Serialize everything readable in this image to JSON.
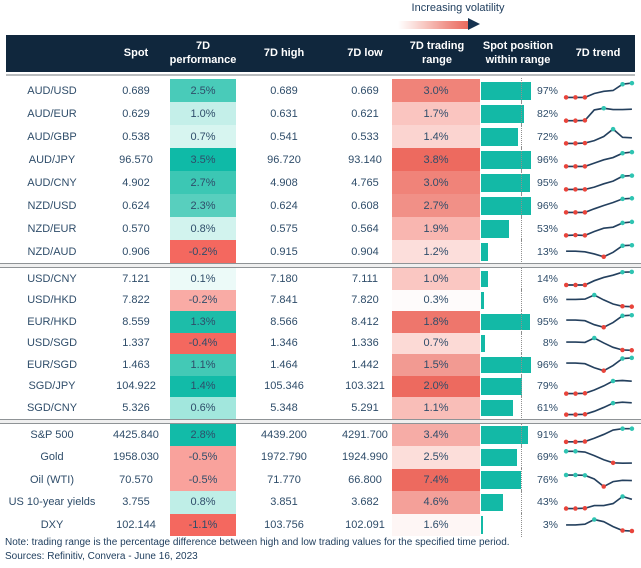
{
  "volatility_label": "Increasing volatility",
  "header": {
    "cols": [
      "Spot",
      "7D performance",
      "7D high",
      "7D low",
      "7D trading range",
      "Spot position within range",
      "7D trend"
    ]
  },
  "colors": {
    "header_bg": "#10273d",
    "bar_teal": "#13b9a6",
    "spark_line": "#24405e",
    "dot_red": "#e8443b",
    "dot_teal": "#2fc4b2",
    "text": "#2f4d6a"
  },
  "groups": [
    {
      "rows": [
        {
          "label": "AUD/USD",
          "spot": "0.689",
          "perf": "2.5%",
          "perf_color": "#49cbb9",
          "high": "0.689",
          "low": "0.669",
          "range": "3.0%",
          "range_color": "#f08379",
          "pos_pct": 97,
          "pos_label": "97%",
          "trend": {
            "v": [
              0.08,
              0.08,
              0.08,
              0.32,
              0.45,
              0.5,
              0.88,
              0.95
            ],
            "d": [
              "r",
              "r",
              "r",
              null,
              null,
              null,
              "t",
              "t"
            ]
          }
        },
        {
          "label": "AUD/EUR",
          "spot": "0.629",
          "perf": "1.0%",
          "perf_color": "#c4efe9",
          "high": "0.631",
          "low": "0.621",
          "range": "1.7%",
          "range_color": "#fac5c0",
          "pos_pct": 82,
          "pos_label": "82%",
          "trend": {
            "v": [
              0.06,
              0.06,
              0.08,
              0.72,
              0.82,
              0.74,
              0.74,
              0.76
            ],
            "d": [
              "r",
              "r",
              "r",
              null,
              "t",
              null,
              null,
              null
            ]
          }
        },
        {
          "label": "AUD/GBP",
          "spot": "0.538",
          "perf": "0.7%",
          "perf_color": "#d7f5f0",
          "high": "0.541",
          "low": "0.533",
          "range": "1.4%",
          "range_color": "#fbd4d0",
          "pos_pct": 72,
          "pos_label": "72%",
          "trend": {
            "v": [
              0.08,
              0.08,
              0.1,
              0.25,
              0.5,
              0.95,
              0.45,
              0.42
            ],
            "d": [
              "r",
              "r",
              "r",
              null,
              null,
              "t",
              null,
              null
            ]
          }
        },
        {
          "label": "AUD/JPY",
          "spot": "96.570",
          "perf": "3.5%",
          "perf_color": "#0fbaa7",
          "high": "96.720",
          "low": "93.140",
          "range": "3.8%",
          "range_color": "#ed6a5f",
          "pos_pct": 96,
          "pos_label": "96%",
          "trend": {
            "v": [
              0.08,
              0.08,
              0.08,
              0.28,
              0.48,
              0.62,
              0.88,
              0.95
            ],
            "d": [
              "r",
              "r",
              "r",
              null,
              null,
              null,
              "t",
              "t"
            ]
          }
        },
        {
          "label": "AUD/CNY",
          "spot": "4.902",
          "perf": "2.7%",
          "perf_color": "#3cc7b4",
          "high": "4.908",
          "low": "4.765",
          "range": "3.0%",
          "range_color": "#f08379",
          "pos_pct": 95,
          "pos_label": "95%",
          "trend": {
            "v": [
              0.08,
              0.08,
              0.08,
              0.22,
              0.42,
              0.58,
              0.88,
              0.92
            ],
            "d": [
              "r",
              "r",
              "r",
              null,
              null,
              null,
              "t",
              "t"
            ]
          }
        },
        {
          "label": "NZD/USD",
          "spot": "0.624",
          "perf": "2.3%",
          "perf_color": "#58cfbe",
          "high": "0.624",
          "low": "0.608",
          "range": "2.7%",
          "range_color": "#f19087",
          "pos_pct": 96,
          "pos_label": "96%",
          "trend": {
            "v": [
              0.08,
              0.08,
              0.08,
              0.3,
              0.5,
              0.68,
              0.9,
              0.94
            ],
            "d": [
              "r",
              "r",
              "r",
              null,
              null,
              null,
              "t",
              "t"
            ]
          }
        },
        {
          "label": "NZD/EUR",
          "spot": "0.570",
          "perf": "0.8%",
          "perf_color": "#d2f3ee",
          "high": "0.575",
          "low": "0.564",
          "range": "1.9%",
          "range_color": "#f9b6b0",
          "pos_pct": 53,
          "pos_label": "53%",
          "trend": {
            "v": [
              0.08,
              0.1,
              0.08,
              0.32,
              0.52,
              0.58,
              0.84,
              0.9
            ],
            "d": [
              "r",
              "r",
              "r",
              null,
              null,
              null,
              "t",
              "t"
            ]
          }
        },
        {
          "label": "NZD/AUD",
          "spot": "0.906",
          "perf": "-0.2%",
          "perf_color": "#f4685f",
          "high": "0.915",
          "low": "0.904",
          "range": "1.2%",
          "range_color": "#fcdedb",
          "pos_pct": 13,
          "pos_label": "13%",
          "trend": {
            "v": [
              0.52,
              0.52,
              0.48,
              0.35,
              0.18,
              0.45,
              0.85,
              0.88
            ],
            "d": [
              null,
              null,
              null,
              null,
              "r",
              null,
              "t",
              "t"
            ]
          }
        }
      ]
    },
    {
      "rows": [
        {
          "label": "USD/CNY",
          "spot": "7.121",
          "perf": "0.1%",
          "perf_color": "#ecfaf8",
          "high": "7.180",
          "low": "7.111",
          "range": "1.0%",
          "range_color": "#fac7c2",
          "pos_pct": 14,
          "pos_label": "14%",
          "trend": {
            "v": [
              0.12,
              0.12,
              0.12,
              0.38,
              0.58,
              0.72,
              0.9,
              0.92
            ],
            "d": [
              "r",
              "r",
              "r",
              null,
              null,
              null,
              "t",
              "t"
            ]
          }
        },
        {
          "label": "USD/HKD",
          "spot": "7.822",
          "perf": "-0.2%",
          "perf_color": "#f9aba5",
          "high": "7.841",
          "low": "7.820",
          "range": "0.3%",
          "range_color": "#fefbfb",
          "pos_pct": 6,
          "pos_label": "6%",
          "trend": {
            "v": [
              0.58,
              0.58,
              0.6,
              0.85,
              0.55,
              0.3,
              0.16,
              0.14
            ],
            "d": [
              null,
              null,
              null,
              "t",
              null,
              null,
              "r",
              "r"
            ]
          }
        },
        {
          "label": "EUR/HKD",
          "spot": "8.559",
          "perf": "1.3%",
          "perf_color": "#1dbda9",
          "high": "8.566",
          "low": "8.412",
          "range": "1.8%",
          "range_color": "#ee766c",
          "pos_pct": 95,
          "pos_label": "95%",
          "trend": {
            "v": [
              0.6,
              0.6,
              0.56,
              0.32,
              0.16,
              0.45,
              0.86,
              0.9
            ],
            "d": [
              null,
              null,
              null,
              null,
              "r",
              null,
              "t",
              "t"
            ]
          }
        },
        {
          "label": "USD/SGD",
          "spot": "1.337",
          "perf": "-0.4%",
          "perf_color": "#f4685f",
          "high": "1.346",
          "low": "1.336",
          "range": "0.7%",
          "range_color": "#fcdad6",
          "pos_pct": 8,
          "pos_label": "8%",
          "trend": {
            "v": [
              0.6,
              0.6,
              0.58,
              0.85,
              0.55,
              0.28,
              0.12,
              0.1
            ],
            "d": [
              null,
              null,
              null,
              "t",
              null,
              null,
              "r",
              "r"
            ]
          }
        },
        {
          "label": "EUR/SGD",
          "spot": "1.463",
          "perf": "1.1%",
          "perf_color": "#43c9b6",
          "high": "1.464",
          "low": "1.442",
          "range": "1.5%",
          "range_color": "#f29a92",
          "pos_pct": 96,
          "pos_label": "96%",
          "trend": {
            "v": [
              0.6,
              0.6,
              0.56,
              0.32,
              0.14,
              0.45,
              0.88,
              0.92
            ],
            "d": [
              null,
              null,
              null,
              null,
              "r",
              null,
              "t",
              "t"
            ]
          }
        },
        {
          "label": "SGD/JPY",
          "spot": "104.922",
          "perf": "1.4%",
          "perf_color": "#12bba8",
          "high": "105.346",
          "low": "103.321",
          "range": "2.0%",
          "range_color": "#ed6a5f",
          "pos_pct": 79,
          "pos_label": "79%",
          "trend": {
            "v": [
              0.08,
              0.08,
              0.1,
              0.3,
              0.55,
              0.85,
              0.88,
              0.84
            ],
            "d": [
              "r",
              "r",
              "r",
              null,
              null,
              "t",
              null,
              null
            ]
          }
        },
        {
          "label": "SGD/CNY",
          "spot": "5.326",
          "perf": "0.6%",
          "perf_color": "#a2e7dd",
          "high": "5.348",
          "low": "5.291",
          "range": "1.1%",
          "range_color": "#f9beb8",
          "pos_pct": 61,
          "pos_label": "61%",
          "trend": {
            "v": [
              0.08,
              0.08,
              0.1,
              0.28,
              0.52,
              0.78,
              0.84,
              0.8
            ],
            "d": [
              "r",
              "r",
              "r",
              null,
              null,
              "t",
              null,
              null
            ]
          }
        }
      ]
    },
    {
      "rows": [
        {
          "label": "S&P 500",
          "spot": "4425.840",
          "perf": "2.8%",
          "perf_color": "#12bba8",
          "high": "4439.200",
          "low": "4291.700",
          "range": "3.4%",
          "range_color": "#f6aca6",
          "pos_pct": 91,
          "pos_label": "91%",
          "trend": {
            "v": [
              0.1,
              0.1,
              0.12,
              0.32,
              0.55,
              0.82,
              0.9,
              0.9
            ],
            "d": [
              "r",
              "r",
              "r",
              null,
              null,
              null,
              "t",
              "t"
            ]
          }
        },
        {
          "label": "Gold",
          "spot": "1958.030",
          "perf": "-0.5%",
          "perf_color": "#f9a29c",
          "high": "1972.790",
          "low": "1924.990",
          "range": "2.5%",
          "range_color": "#fcdeda",
          "pos_pct": 69,
          "pos_label": "69%",
          "trend": {
            "v": [
              0.86,
              0.86,
              0.82,
              0.6,
              0.35,
              0.16,
              0.14,
              0.15
            ],
            "d": [
              "t",
              "t",
              null,
              null,
              null,
              "r",
              null,
              null
            ]
          }
        },
        {
          "label": "Oil (WTI)",
          "spot": "70.570",
          "perf": "-0.5%",
          "perf_color": "#f9a29c",
          "high": "71.770",
          "low": "66.800",
          "range": "7.4%",
          "range_color": "#ed6a5f",
          "pos_pct": 76,
          "pos_label": "76%",
          "trend": {
            "v": [
              0.82,
              0.82,
              0.8,
              0.58,
              0.12,
              0.42,
              0.5,
              0.48
            ],
            "d": [
              "t",
              "t",
              "t",
              null,
              "r",
              null,
              null,
              null
            ]
          }
        },
        {
          "label": "US 10-year yields",
          "spot": "3.755",
          "perf": "0.8%",
          "perf_color": "#bfeee7",
          "high": "3.851",
          "low": "3.682",
          "range": "4.6%",
          "range_color": "#f4a099",
          "pos_pct": 43,
          "pos_label": "43%",
          "trend": {
            "v": [
              0.12,
              0.12,
              0.14,
              0.3,
              0.3,
              0.42,
              0.85,
              0.68
            ],
            "d": [
              "r",
              "r",
              "r",
              null,
              null,
              null,
              "t",
              null
            ]
          }
        },
        {
          "label": "DXY",
          "spot": "102.144",
          "perf": "-1.1%",
          "perf_color": "#f4685f",
          "high": "103.756",
          "low": "102.091",
          "range": "1.6%",
          "range_color": "#fef6f5",
          "pos_pct": 3,
          "pos_label": "3%",
          "trend": {
            "v": [
              0.52,
              0.52,
              0.56,
              0.85,
              0.72,
              0.42,
              0.18,
              0.15
            ],
            "d": [
              null,
              null,
              null,
              "t",
              null,
              null,
              "r",
              "r"
            ]
          }
        }
      ]
    }
  ],
  "note": "Note: trading range is the percentage difference between high and low trading values for the specified time period.",
  "sources": "Sources: Refinitiv, Convera - June 16, 2023"
}
